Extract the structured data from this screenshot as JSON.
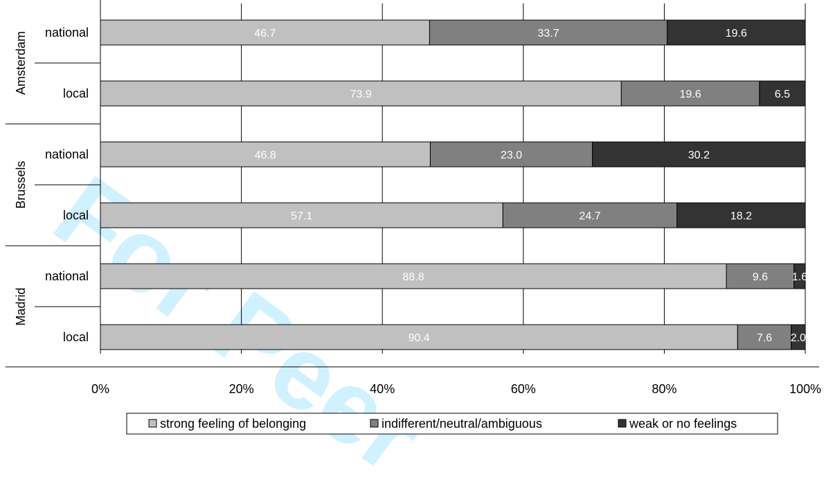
{
  "watermark": "For Peer",
  "chart_data": {
    "type": "bar",
    "orientation": "horizontal",
    "stacked": true,
    "percent": true,
    "title": "",
    "xlabel": "",
    "ylabel": "",
    "xlim": [
      0,
      100
    ],
    "x_ticks": [
      "0%",
      "20%",
      "40%",
      "60%",
      "80%",
      "100%"
    ],
    "grid": true,
    "legend_position": "bottom",
    "groups": [
      {
        "name": "Amsterdam",
        "categories": [
          "national",
          "local"
        ]
      },
      {
        "name": "Brussels",
        "categories": [
          "national",
          "local"
        ]
      },
      {
        "name": "Madrid",
        "categories": [
          "national",
          "local"
        ]
      }
    ],
    "series": [
      {
        "name": "strong feeling of belonging",
        "color": "#c0c0c0",
        "label_color": "#ffffff",
        "values": [
          46.7,
          73.9,
          46.8,
          57.1,
          88.8,
          90.4
        ],
        "labels": [
          "46.7",
          "73.9",
          "46.8",
          "57.1",
          "88.8",
          "90.4"
        ]
      },
      {
        "name": "indifferent/neutral/ambiguous",
        "color": "#808080",
        "label_color": "#ffffff",
        "values": [
          33.7,
          19.6,
          23.0,
          24.7,
          9.6,
          7.6
        ],
        "labels": [
          "33.7",
          "19.6",
          "23.0",
          "24.7",
          "9.6",
          "7.6"
        ]
      },
      {
        "name": "weak or no feelings",
        "color": "#333333",
        "label_color": "#ffffff",
        "values": [
          19.6,
          6.5,
          30.2,
          18.2,
          1.6,
          2.0
        ],
        "labels": [
          "19.6",
          "6.5",
          "30.2",
          "18.2",
          "1.6",
          "2.0"
        ]
      }
    ]
  }
}
